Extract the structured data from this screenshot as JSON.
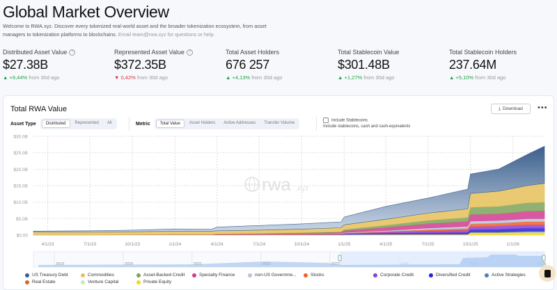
{
  "header": {
    "title": "Global Market Overview",
    "description": "Welcome to RWA.xyz. Discover every tokenized real-world asset and the broader tokenization ecosystem, from asset managers to tokenization platforms to blockchains.",
    "contact": "Email team@rwa.xyz for questions or help."
  },
  "stats": [
    {
      "label": "Distributed Asset Value",
      "value": "$27.38B",
      "change": "+9,44%",
      "direction": "up",
      "suffix": "from 30d ago",
      "help": true
    },
    {
      "label": "Represented Asset Value",
      "value": "$372.35B",
      "change": "0,42%",
      "direction": "down",
      "suffix": "from 30d ago",
      "help": true
    },
    {
      "label": "Total Asset Holders",
      "value": "676 257",
      "change": "+4,13%",
      "direction": "up",
      "suffix": "from 30d ago"
    },
    {
      "label": "Total Stablecoin Value",
      "value": "$301.48B",
      "change": "+1,27%",
      "direction": "up",
      "suffix": "from 30d ago"
    },
    {
      "label": "Total Stablecoin Holders",
      "value": "237.64M",
      "change": "+5,10%",
      "direction": "up",
      "suffix": "from 30d ago"
    }
  ],
  "card": {
    "title": "Total RWA Value",
    "download": "Download",
    "more": "•••",
    "asset_type": {
      "label": "Asset Type",
      "options": [
        "Distributed",
        "Represented",
        "All"
      ],
      "selected": "Distributed"
    },
    "metric": {
      "label": "Metric",
      "options": [
        "Total Value",
        "Asset Holders",
        "Active Addresses",
        "Transfer Volume"
      ],
      "selected": "Total Value"
    },
    "stablecoins": {
      "label": "Include Stablecoins",
      "hint": "Include stablecoins, cash and cash-equivalents",
      "checked": false
    },
    "watermark": "rwa.xyz"
  },
  "chart_data": {
    "type": "area",
    "stacked": true,
    "grid": true,
    "ylim": [
      0,
      30
    ],
    "y_ticks": [
      "$0.00",
      "$5.0B",
      "$10.0B",
      "$15.0B",
      "$20.0B",
      "$25.0B",
      "$30.0B"
    ],
    "x_ticks": [
      "4/1/23",
      "7/1/23",
      "10/1/23",
      "1/1/24",
      "4/1/24",
      "7/1/24",
      "10/1/24",
      "1/1/25",
      "4/1/25",
      "7/1/25",
      "10/1/25",
      "1/1/26"
    ],
    "x_tick_dates": [
      "2023-04-01",
      "2023-07-01",
      "2023-10-01",
      "2024-01-01",
      "2024-04-01",
      "2024-07-01",
      "2024-10-01",
      "2025-01-01",
      "2025-04-01",
      "2025-07-01",
      "2025-10-01",
      "2026-01-01"
    ],
    "x": [
      "2023-03-01",
      "2023-07-01",
      "2023-10-01",
      "2024-01-01",
      "2024-03-20",
      "2024-04-01",
      "2024-07-01",
      "2024-10-01",
      "2024-12-25",
      "2025-01-01",
      "2025-04-01",
      "2025-07-01",
      "2025-09-25",
      "2025-10-01",
      "2025-12-01",
      "2026-02-01",
      "2026-03-10"
    ],
    "series": [
      {
        "name": "Private Equity",
        "color": "#f2d81f",
        "values": [
          0,
          0,
          0,
          0,
          0,
          0,
          0,
          0,
          0,
          0.05,
          0.1,
          0.1,
          0.1,
          0.6,
          0.6,
          0.7,
          0.7
        ]
      },
      {
        "name": "Venture Capital",
        "color": "#c6e8bf",
        "values": [
          0.05,
          0.05,
          0.07,
          0.07,
          0.07,
          0.07,
          0.07,
          0.07,
          0.07,
          0.1,
          0.1,
          0.1,
          0.1,
          0.15,
          0.15,
          0.2,
          0.2
        ]
      },
      {
        "name": "Real Estate",
        "color": "#d8662a",
        "values": [
          0.02,
          0.02,
          0.02,
          0.05,
          0.05,
          0.1,
          0.1,
          0.1,
          0.1,
          0.05,
          0.05,
          0.05,
          0.05,
          0.08,
          0.08,
          0.1,
          0.1
        ]
      },
      {
        "name": "Active Strategies",
        "color": "#4a82b4",
        "values": [
          0,
          0,
          0,
          0,
          0,
          0,
          0,
          0,
          0,
          0,
          0.05,
          0.1,
          0.1,
          0.2,
          0.2,
          0.3,
          0.3
        ]
      },
      {
        "name": "Diversified Credit",
        "color": "#2424d8",
        "values": [
          0,
          0,
          0,
          0,
          0,
          0,
          0,
          0.02,
          0.05,
          0.1,
          0.2,
          0.3,
          0.4,
          0.6,
          0.7,
          0.8,
          0.8
        ]
      },
      {
        "name": "Corporate Credit",
        "color": "#8c3fd8",
        "values": [
          0,
          0,
          0,
          0,
          0,
          0,
          0.02,
          0.05,
          0.1,
          0.2,
          0.4,
          0.6,
          0.7,
          0.9,
          1.0,
          1.0,
          1.0
        ]
      },
      {
        "name": "Stocks",
        "color": "#f0602a",
        "values": [
          0,
          0,
          0,
          0,
          0,
          0,
          0,
          0.02,
          0.05,
          0.1,
          0.2,
          0.4,
          0.6,
          0.9,
          0.9,
          1.0,
          1.0
        ]
      },
      {
        "name": "non-US Governme...",
        "color": "#b8c4da",
        "values": [
          0,
          0,
          0,
          0,
          0,
          0,
          0.05,
          0.1,
          0.15,
          0.2,
          0.3,
          0.5,
          0.6,
          0.8,
          0.8,
          0.9,
          0.9
        ]
      },
      {
        "name": "Specialty Finance",
        "color": "#d43b92",
        "values": [
          0,
          0,
          0.02,
          0.05,
          0.05,
          0.1,
          0.15,
          0.2,
          0.3,
          0.5,
          0.9,
          1.3,
          1.5,
          2.0,
          2.0,
          2.2,
          2.3
        ]
      },
      {
        "name": "Asset-Backed Credit",
        "color": "#7ea35a",
        "values": [
          0,
          0,
          0,
          0.02,
          0.02,
          0.05,
          0.1,
          0.15,
          0.2,
          0.4,
          0.7,
          1.0,
          1.2,
          2.2,
          2.3,
          2.6,
          2.7
        ]
      },
      {
        "name": "Commodities",
        "color": "#e6c05a",
        "values": [
          0.9,
          0.9,
          0.9,
          1.0,
          1.0,
          1.0,
          1.0,
          1.1,
          1.2,
          1.4,
          1.8,
          2.2,
          2.6,
          4.2,
          4.6,
          5.2,
          5.7
        ]
      },
      {
        "name": "US Treasury Debt",
        "color": "#3c5f8c",
        "values": [
          0.23,
          0.33,
          0.5,
          0.66,
          0.56,
          1.08,
          1.4,
          1.6,
          1.8,
          2.4,
          3.9,
          4.6,
          6.0,
          5.9,
          6.7,
          9.5,
          11.3
        ]
      }
    ],
    "legend_order": [
      "US Treasury Debt",
      "Commodities",
      "Asset-Backed Credit",
      "Specialty Finance",
      "non-US Governme...",
      "Stocks",
      "Corporate Credit",
      "Diversified Credit",
      "Active Strategies",
      "Real Estate",
      "Venture Capital",
      "Private Equity"
    ],
    "legend_placement": "bottom",
    "navigator": {
      "years": [
        "2019",
        "2020",
        "2021",
        "2022",
        "2023",
        "2024",
        "2025",
        "2026"
      ]
    }
  }
}
